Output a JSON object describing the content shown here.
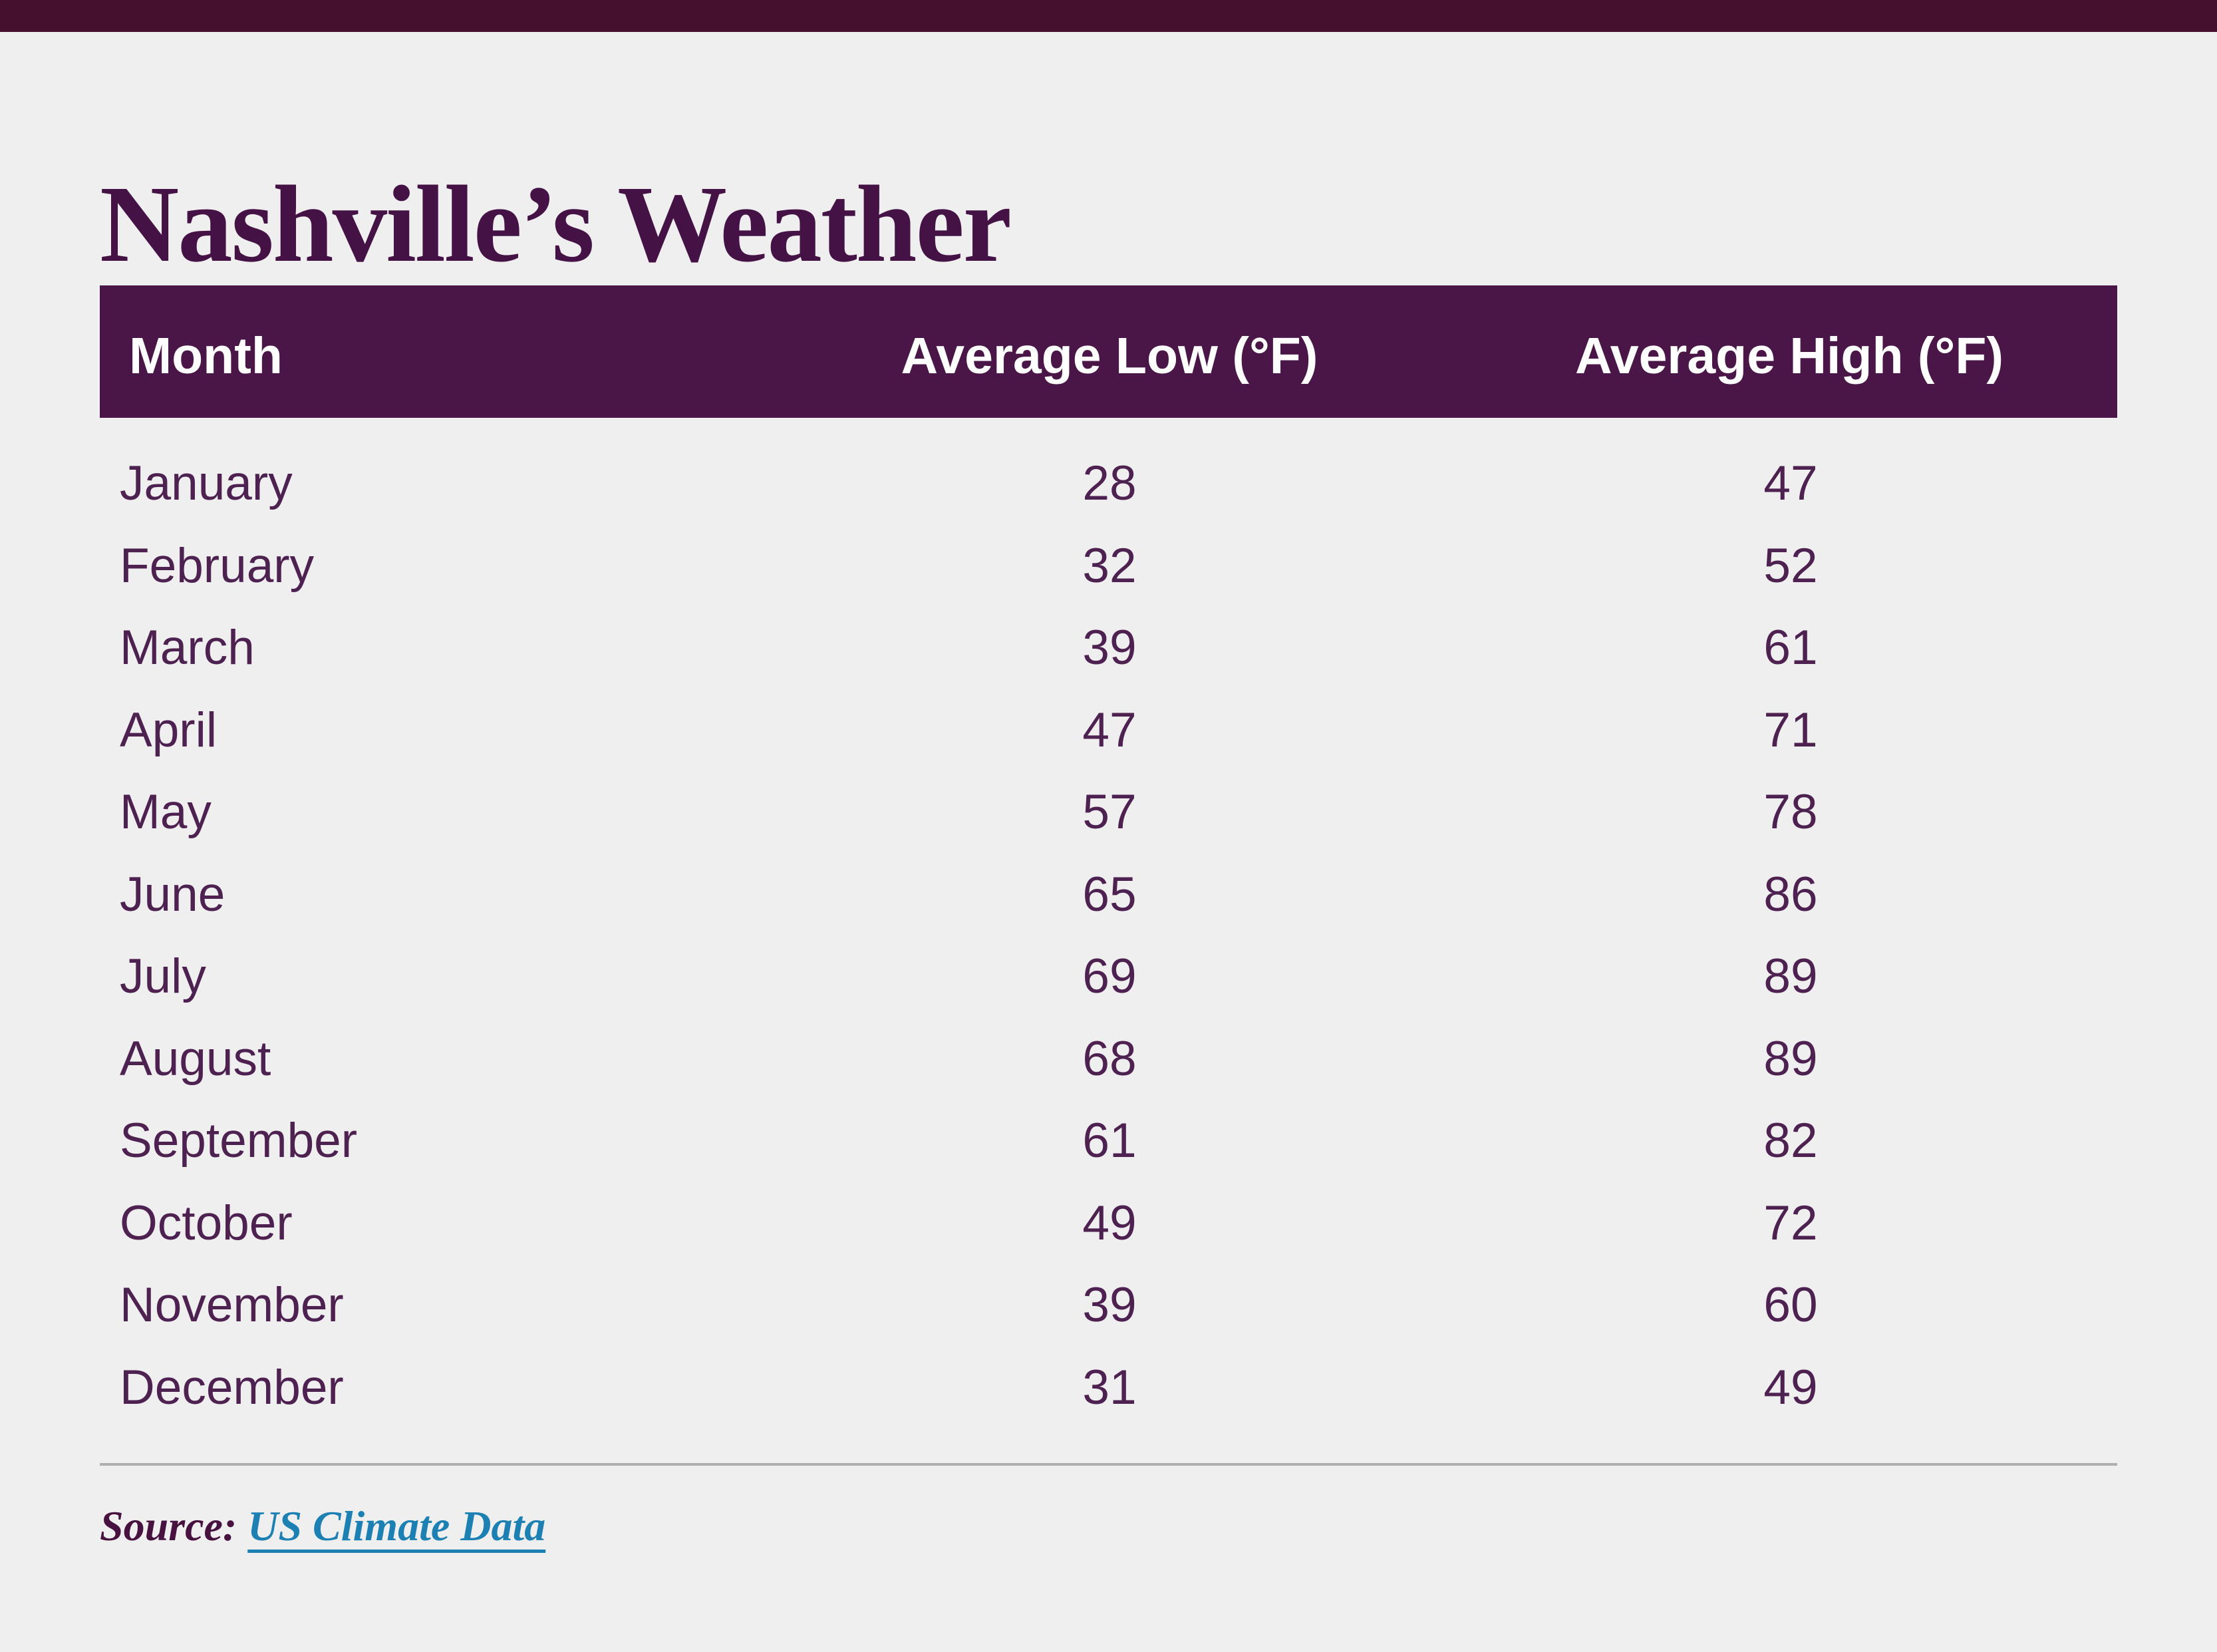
{
  "title": "Nashville’s Weather",
  "top_bar": {
    "color": "#45102D"
  },
  "table": {
    "columns": {
      "month": "Month",
      "low": "Average Low (°F)",
      "high": "Average High (°F)"
    },
    "rows": [
      {
        "month": "January",
        "low": "28",
        "high": "47"
      },
      {
        "month": "February",
        "low": "32",
        "high": "52"
      },
      {
        "month": "March",
        "low": "39",
        "high": "61"
      },
      {
        "month": "April",
        "low": "47",
        "high": "71"
      },
      {
        "month": "May",
        "low": "57",
        "high": "78"
      },
      {
        "month": "June",
        "low": "65",
        "high": "86"
      },
      {
        "month": "July",
        "low": "69",
        "high": "89"
      },
      {
        "month": "August",
        "low": "68",
        "high": "89"
      },
      {
        "month": "September",
        "low": "61",
        "high": "82"
      },
      {
        "month": "October",
        "low": "49",
        "high": "72"
      },
      {
        "month": "November",
        "low": "39",
        "high": "60"
      },
      {
        "month": "December",
        "low": "31",
        "high": "49"
      }
    ]
  },
  "source": {
    "label": "Source:",
    "link_text": "US Climate Data"
  },
  "colors": {
    "page_bg": "#F0EFF0",
    "topbar_bg": "#45102D",
    "title_color": "#441245",
    "header_bg": "#4A1647",
    "header_text": "#FFFFFF",
    "body_text": "#4D2150",
    "divider_color": "#B0AEB0",
    "source_color": "#47123F",
    "link_color": "#1C80B3"
  },
  "chart_data": {
    "type": "table",
    "title": "Nashville’s Weather",
    "columns": [
      "Month",
      "Average Low (°F)",
      "Average High (°F)"
    ],
    "rows": [
      [
        "January",
        28,
        47
      ],
      [
        "February",
        32,
        52
      ],
      [
        "March",
        39,
        61
      ],
      [
        "April",
        47,
        71
      ],
      [
        "May",
        57,
        78
      ],
      [
        "June",
        65,
        86
      ],
      [
        "July",
        69,
        89
      ],
      [
        "August",
        68,
        89
      ],
      [
        "September",
        61,
        82
      ],
      [
        "October",
        49,
        72
      ],
      [
        "November",
        39,
        60
      ],
      [
        "December",
        31,
        49
      ]
    ],
    "source": "Source: US Climate Data",
    "legend_position": "none",
    "grid": false
  }
}
